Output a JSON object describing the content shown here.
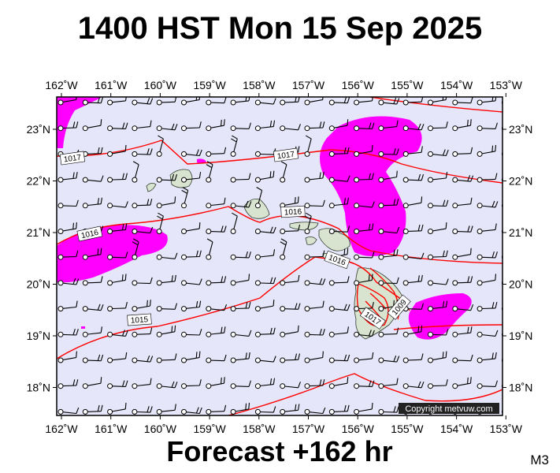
{
  "title": "1400 HST Mon 15 Sep 2025",
  "footer": "Forecast +162 hr",
  "map_code": "M3",
  "copyright": "Copyright metvuw.com",
  "colors": {
    "ocean": "#e6e6fa",
    "rain": "#ff00ff",
    "isobar": "#ff0000",
    "land": "#d8e4d0",
    "wind": "#000000"
  },
  "axes": {
    "lon_labels": [
      "162˚W",
      "161˚W",
      "160˚W",
      "159˚W",
      "158˚W",
      "157˚W",
      "156˚W",
      "155˚W",
      "154˚W",
      "153˚W"
    ],
    "lat_labels": [
      "23˚N",
      "22˚N",
      "21˚N",
      "20˚N",
      "19˚N",
      "18˚N"
    ]
  },
  "isobar_labels": [
    {
      "text": "1017"
    },
    {
      "text": "1017"
    },
    {
      "text": "1016"
    },
    {
      "text": "1016"
    },
    {
      "text": "1016"
    },
    {
      "text": "1015"
    },
    {
      "text": "1017"
    },
    {
      "text": "1009"
    }
  ]
}
